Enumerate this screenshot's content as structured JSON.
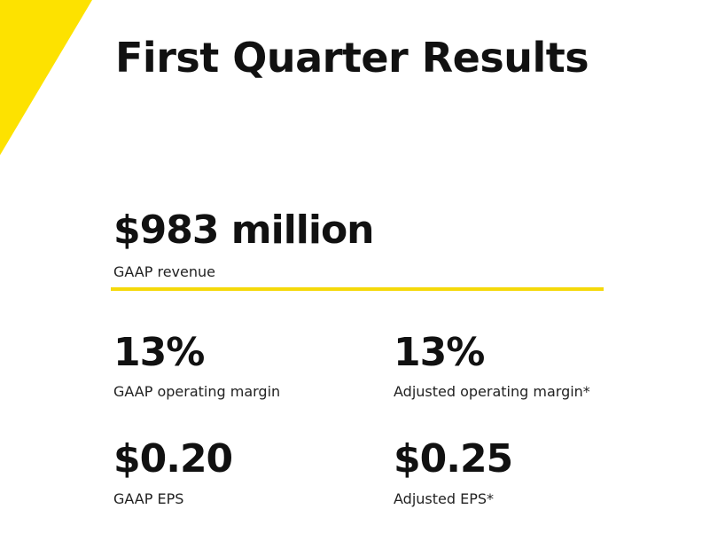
{
  "header": {
    "title": "First Quarter Results"
  },
  "headline": {
    "value": "$983 million",
    "label": "GAAP revenue"
  },
  "metrics": [
    {
      "value": "13%",
      "label": "GAAP operating margin"
    },
    {
      "value": "13%",
      "label": "Adjusted operating margin*"
    },
    {
      "value": "$0.20",
      "label": "GAAP EPS"
    },
    {
      "value": "$0.25",
      "label": "Adjusted EPS*"
    }
  ]
}
